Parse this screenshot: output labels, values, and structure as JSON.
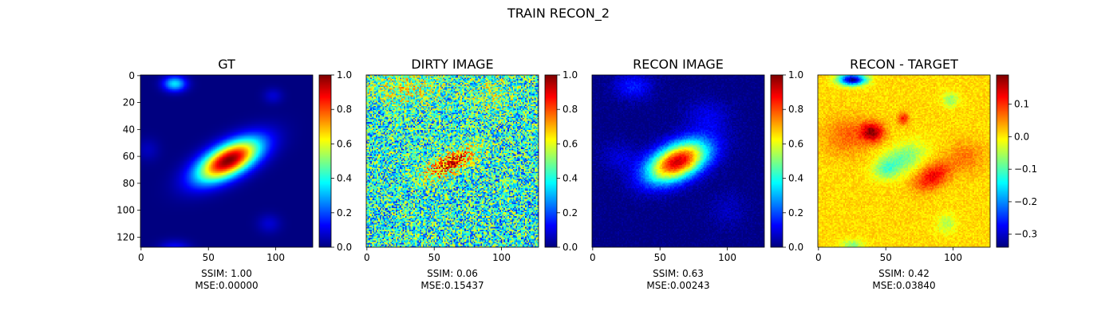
{
  "suptitle": "TRAIN RECON_2",
  "colormap": "jet",
  "chart_data": [
    {
      "type": "heatmap",
      "title": "GT",
      "xlabel_lines": [
        "SSIM: 1.00",
        "MSE:0.00000"
      ],
      "x_ticks": [
        0,
        50,
        100
      ],
      "y_ticks": [
        0,
        20,
        40,
        60,
        80,
        100,
        120
      ],
      "grid_size": [
        128,
        128
      ],
      "colorbar": {
        "range": [
          0.0,
          1.0
        ],
        "ticks": [
          "0.0",
          "0.2",
          "0.4",
          "0.6",
          "0.8",
          "1.0"
        ]
      },
      "features": [
        {
          "x": 65,
          "y": 63,
          "amplitude": 1.0,
          "sigma_major": 18,
          "sigma_minor": 8,
          "angle_deg": -28
        },
        {
          "x": 25,
          "y": 6,
          "amplitude": 0.35,
          "sigma_major": 6,
          "sigma_minor": 4,
          "angle_deg": 0
        },
        {
          "x": 98,
          "y": 15,
          "amplitude": 0.08,
          "sigma_major": 5,
          "sigma_minor": 4,
          "angle_deg": 0
        },
        {
          "x": 95,
          "y": 110,
          "amplitude": 0.08,
          "sigma_major": 6,
          "sigma_minor": 5,
          "angle_deg": 0
        },
        {
          "x": 25,
          "y": 128,
          "amplitude": 0.12,
          "sigma_major": 8,
          "sigma_minor": 4,
          "angle_deg": 0
        },
        {
          "x": 5,
          "y": 55,
          "amplitude": 0.06,
          "sigma_major": 6,
          "sigma_minor": 6,
          "angle_deg": 0
        }
      ]
    },
    {
      "type": "heatmap",
      "title": "DIRTY IMAGE",
      "xlabel_lines": [
        "SSIM: 0.06",
        "MSE:0.15437"
      ],
      "x_ticks": [
        0,
        50,
        100
      ],
      "y_ticks": [],
      "grid_size": [
        128,
        128
      ],
      "colorbar": {
        "range": [
          0.0,
          1.0
        ],
        "ticks": [
          "0.0",
          "0.2",
          "0.4",
          "0.6",
          "0.8",
          "1.0"
        ]
      },
      "features": [
        {
          "x": 62,
          "y": 65,
          "amplitude": 0.45,
          "sigma_major": 14,
          "sigma_minor": 5,
          "angle_deg": -28
        },
        {
          "x": 30,
          "y": 10,
          "amplitude": 0.15,
          "sigma_major": 20,
          "sigma_minor": 10,
          "angle_deg": 0
        },
        {
          "x": 95,
          "y": 15,
          "amplitude": 0.1,
          "sigma_major": 15,
          "sigma_minor": 10,
          "angle_deg": 0
        }
      ],
      "background_level": 0.4,
      "noise_level": 0.25
    },
    {
      "type": "heatmap",
      "title": "RECON IMAGE",
      "xlabel_lines": [
        "SSIM: 0.63",
        "MSE:0.00243"
      ],
      "x_ticks": [
        0,
        50,
        100
      ],
      "y_ticks": [],
      "grid_size": [
        128,
        128
      ],
      "colorbar": {
        "range": [
          0.0,
          1.0
        ],
        "ticks": [
          "0.0",
          "0.2",
          "0.4",
          "0.6",
          "0.8",
          "1.0"
        ]
      },
      "features": [
        {
          "x": 63,
          "y": 64,
          "amplitude": 0.92,
          "sigma_major": 17,
          "sigma_minor": 9,
          "angle_deg": -25
        },
        {
          "x": 30,
          "y": 8,
          "amplitude": 0.15,
          "sigma_major": 10,
          "sigma_minor": 7,
          "angle_deg": 0
        },
        {
          "x": 85,
          "y": 30,
          "amplitude": 0.1,
          "sigma_major": 12,
          "sigma_minor": 9,
          "angle_deg": 0
        },
        {
          "x": 20,
          "y": 60,
          "amplitude": 0.08,
          "sigma_major": 10,
          "sigma_minor": 8,
          "angle_deg": 0
        },
        {
          "x": 100,
          "y": 100,
          "amplitude": 0.06,
          "sigma_major": 10,
          "sigma_minor": 10,
          "angle_deg": 0
        }
      ],
      "noise_level": 0.03
    },
    {
      "type": "heatmap",
      "title": "RECON - TARGET",
      "xlabel_lines": [
        "SSIM: 0.42",
        "MSE:0.03840"
      ],
      "x_ticks": [
        0,
        50,
        100
      ],
      "y_ticks": [],
      "grid_size": [
        128,
        128
      ],
      "colorbar": {
        "range": [
          -0.34,
          0.19
        ],
        "ticks": [
          "0.1",
          "0.0",
          "−0.1",
          "−0.2",
          "−0.3"
        ],
        "tick_values": [
          0.1,
          0.0,
          -0.1,
          -0.2,
          -0.3
        ]
      },
      "background_level": 0.01,
      "features": [
        {
          "x": 25,
          "y": 3,
          "amplitude": -0.34,
          "sigma_major": 7,
          "sigma_minor": 3,
          "angle_deg": 0
        },
        {
          "x": 40,
          "y": 42,
          "amplitude": 0.16,
          "sigma_major": 6,
          "sigma_minor": 5,
          "angle_deg": 0
        },
        {
          "x": 63,
          "y": 32,
          "amplitude": 0.1,
          "sigma_major": 3,
          "sigma_minor": 3,
          "angle_deg": 0
        },
        {
          "x": 85,
          "y": 75,
          "amplitude": 0.12,
          "sigma_major": 10,
          "sigma_minor": 6,
          "angle_deg": -30
        },
        {
          "x": 22,
          "y": 45,
          "amplitude": 0.06,
          "sigma_major": 12,
          "sigma_minor": 10,
          "angle_deg": 0
        },
        {
          "x": 62,
          "y": 62,
          "amplitude": -0.1,
          "sigma_major": 12,
          "sigma_minor": 7,
          "angle_deg": -25
        },
        {
          "x": 50,
          "y": 70,
          "amplitude": -0.07,
          "sigma_major": 6,
          "sigma_minor": 5,
          "angle_deg": 0
        },
        {
          "x": 98,
          "y": 18,
          "amplitude": -0.08,
          "sigma_major": 4,
          "sigma_minor": 4,
          "angle_deg": 0
        },
        {
          "x": 95,
          "y": 110,
          "amplitude": -0.06,
          "sigma_major": 5,
          "sigma_minor": 5,
          "angle_deg": 0
        },
        {
          "x": 25,
          "y": 126,
          "amplitude": -0.08,
          "sigma_major": 6,
          "sigma_minor": 3,
          "angle_deg": 0
        },
        {
          "x": 110,
          "y": 60,
          "amplitude": 0.05,
          "sigma_major": 10,
          "sigma_minor": 8,
          "angle_deg": 0
        }
      ],
      "noise_level": 0.02
    }
  ]
}
